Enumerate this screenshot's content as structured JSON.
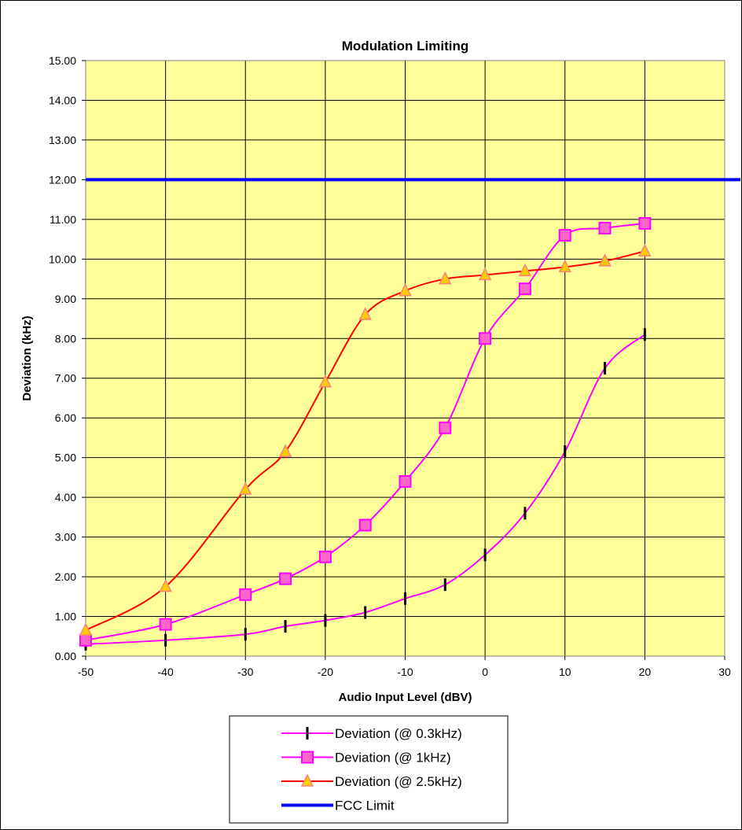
{
  "chart_data": {
    "type": "line",
    "title": "Modulation Limiting",
    "xlabel": "Audio Input Level (dBV)",
    "ylabel": "Deviation (kHz)",
    "xlim": [
      -50,
      30
    ],
    "ylim": [
      0,
      15
    ],
    "x_ticks": [
      "-50",
      "-40",
      "-30",
      "-20",
      "-10",
      "0",
      "10",
      "20",
      "30"
    ],
    "y_ticks": [
      "0.00",
      "1.00",
      "2.00",
      "3.00",
      "4.00",
      "5.00",
      "6.00",
      "7.00",
      "8.00",
      "9.00",
      "10.00",
      "11.00",
      "12.00",
      "13.00",
      "14.00",
      "15.00"
    ],
    "grid": true,
    "legend_position": "bottom",
    "plot_background": "#ffff99",
    "x": [
      -50,
      -40,
      -30,
      -25,
      -20,
      -15,
      -10,
      -5,
      0,
      5,
      10,
      15,
      20
    ],
    "series": [
      {
        "name": "Deviation (@ 0.3kHz)",
        "color": "#ff00ff",
        "marker": "dash",
        "marker_color": "#000000",
        "values": [
          0.3,
          0.4,
          0.55,
          0.75,
          0.9,
          1.1,
          1.45,
          1.8,
          2.55,
          3.6,
          5.15,
          7.25,
          8.1
        ]
      },
      {
        "name": "Deviation (@ 1kHz)",
        "color": "#ff00ff",
        "marker": "square",
        "marker_color": "#ff66cc",
        "values": [
          0.4,
          0.8,
          1.55,
          1.95,
          2.5,
          3.3,
          4.4,
          5.75,
          8.0,
          9.25,
          10.6,
          10.78,
          10.9
        ]
      },
      {
        "name": "Deviation (@ 2.5kHz)",
        "color": "#ff0000",
        "marker": "triangle",
        "marker_color": "#ffcc00",
        "values": [
          0.65,
          1.75,
          4.2,
          5.15,
          6.9,
          8.6,
          9.2,
          9.5,
          9.6,
          9.7,
          9.8,
          9.95,
          10.2
        ]
      },
      {
        "name": "FCC Limit",
        "color": "#0000ff",
        "marker": "none",
        "x": [
          -50,
          30
        ],
        "values": [
          12,
          12
        ]
      }
    ]
  }
}
